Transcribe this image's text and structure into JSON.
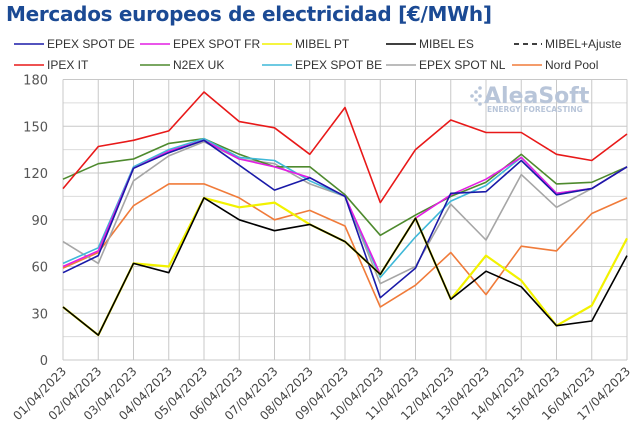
{
  "chart_data": {
    "type": "line",
    "title": "Mercados europeos de electricidad [€/MWh]",
    "xlabel": "",
    "ylabel": "",
    "ylim": [
      0,
      180
    ],
    "yticks": [
      0,
      30,
      60,
      90,
      120,
      150,
      180
    ],
    "grid": true,
    "legend_position": "top",
    "watermark": {
      "main": "AleaSoft",
      "sub": "ENERGY FORECASTING"
    },
    "categories": [
      "01/04/2023",
      "02/04/2023",
      "03/04/2023",
      "04/04/2023",
      "05/04/2023",
      "06/04/2023",
      "07/04/2023",
      "08/04/2023",
      "09/04/2023",
      "10/04/2023",
      "11/04/2023",
      "12/04/2023",
      "13/04/2023",
      "14/04/2023",
      "15/04/2023",
      "16/04/2023",
      "17/04/2023"
    ],
    "series": [
      {
        "name": "EPEX SPOT DE",
        "color": "#1a1aa8",
        "dash": false,
        "values": [
          56,
          67,
          123,
          133,
          141,
          125,
          109,
          117,
          105,
          40,
          59,
          107,
          108,
          128,
          106,
          110,
          124
        ]
      },
      {
        "name": "EPEX SPOT FR",
        "color": "#e31ee3",
        "dash": false,
        "values": [
          60,
          70,
          123,
          134,
          141,
          129,
          124,
          117,
          105,
          55,
          91,
          106,
          116,
          130,
          107,
          110,
          124
        ]
      },
      {
        "name": "MIBEL PT",
        "color": "#f2f200",
        "dash": false,
        "values": [
          34,
          16,
          62,
          60,
          104,
          98,
          101,
          87,
          76,
          55,
          91,
          39,
          67,
          51,
          22,
          35,
          78
        ]
      },
      {
        "name": "MIBEL ES",
        "color": "#000000",
        "dash": false,
        "values": [
          34,
          16,
          62,
          56,
          104,
          90,
          83,
          87,
          76,
          55,
          91,
          39,
          57,
          47,
          22,
          25,
          67
        ]
      },
      {
        "name": "MIBEL+Ajuste",
        "color": "#000000",
        "dash": true,
        "values": []
      },
      {
        "name": "IPEX IT",
        "color": "#e81919",
        "dash": false,
        "values": [
          110,
          137,
          141,
          147,
          172,
          153,
          149,
          132,
          162,
          101,
          135,
          154,
          146,
          146,
          132,
          128,
          145
        ]
      },
      {
        "name": "N2EX UK",
        "color": "#4e8a2e",
        "dash": false,
        "values": [
          116,
          126,
          129,
          139,
          142,
          132,
          124,
          124,
          106,
          80,
          93,
          105,
          114,
          132,
          113,
          114,
          124
        ]
      },
      {
        "name": "EPEX SPOT BE",
        "color": "#3fb8d8",
        "dash": false,
        "values": [
          62,
          72,
          124,
          135,
          142,
          130,
          128,
          115,
          105,
          53,
          79,
          102,
          112,
          130,
          107,
          110,
          124
        ]
      },
      {
        "name": "EPEX SPOT NL",
        "color": "#a6a6a6",
        "dash": false,
        "values": [
          76,
          62,
          115,
          131,
          140,
          129,
          126,
          113,
          105,
          49,
          60,
          100,
          77,
          119,
          98,
          110,
          124
        ]
      },
      {
        "name": "Nord Pool",
        "color": "#f07b3a",
        "dash": false,
        "values": [
          59,
          69,
          99,
          113,
          113,
          104,
          90,
          96,
          86,
          34,
          48,
          69,
          42,
          73,
          70,
          94,
          104
        ]
      }
    ]
  }
}
